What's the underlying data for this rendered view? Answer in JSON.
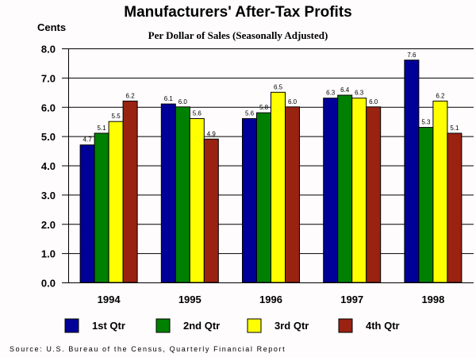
{
  "chart_data": {
    "type": "bar",
    "title": "Manufacturers' After-Tax Profits",
    "subtitle": "Per Dollar of Sales (Seasonally Adjusted)",
    "xlabel": "",
    "ylabel": "Cents",
    "ylim": [
      0,
      8
    ],
    "yticks": [
      "0.0",
      "1.0",
      "2.0",
      "3.0",
      "4.0",
      "5.0",
      "6.0",
      "7.0",
      "8.0"
    ],
    "grid": true,
    "categories": [
      "1994",
      "1995",
      "1996",
      "1997",
      "1998"
    ],
    "series": [
      {
        "name": "1st Qtr",
        "color": "#000099",
        "values": [
          4.7,
          6.1,
          5.6,
          6.3,
          7.6
        ],
        "labels": [
          "4.7",
          "6.1",
          "5.6",
          "6.3",
          "7.6"
        ]
      },
      {
        "name": "2nd Qtr",
        "color": "#008000",
        "values": [
          5.1,
          6.0,
          5.8,
          6.4,
          5.3
        ],
        "labels": [
          "5.1",
          "6.0",
          "5.8",
          "6.4",
          "5.3"
        ]
      },
      {
        "name": "3rd Qtr",
        "color": "#ffff00",
        "values": [
          5.5,
          5.6,
          6.5,
          6.3,
          6.2
        ],
        "labels": [
          "5.5",
          "5.6",
          "6.5",
          "6.3",
          "6.2"
        ]
      },
      {
        "name": "4th Qtr",
        "color": "#992211",
        "values": [
          6.2,
          4.9,
          6.0,
          6.0,
          5.1
        ],
        "labels": [
          "6.2",
          "4.9",
          "6.0",
          "6.0",
          "5.1"
        ]
      }
    ],
    "legend_position": "bottom"
  },
  "source": "Source: U.S. Bureau of the Census, Quarterly Financial Report"
}
